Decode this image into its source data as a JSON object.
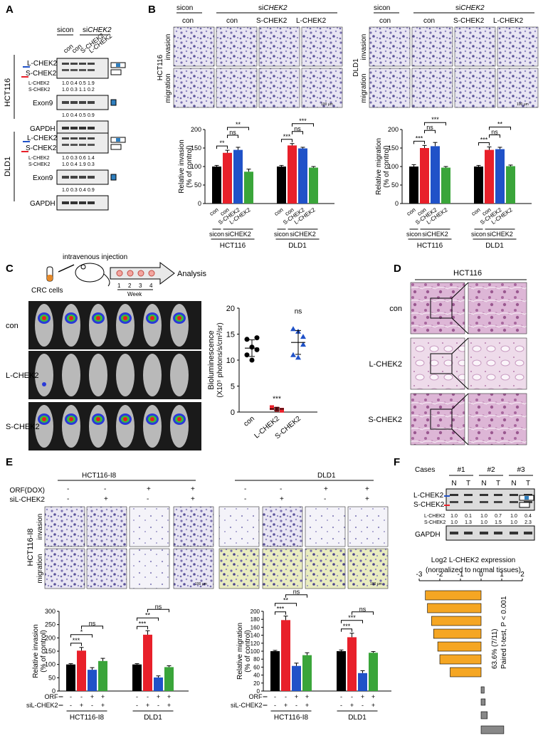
{
  "panels": {
    "A": {
      "letter": "A",
      "header": {
        "sicon": "sicon",
        "si": "si",
        "gene": "CHEK2"
      },
      "lanes": [
        "con",
        "con",
        "S-CHEK2",
        "L-CHEK2"
      ],
      "lines": [
        "HCT116",
        "DLD1"
      ],
      "bands": {
        "long": "L-CHEK2",
        "short": "S-CHEK2",
        "exon9": "Exon9",
        "gapdh": "GAPDH"
      },
      "hct116": {
        "l_ratio": [
          "1.0",
          "0.4",
          "0.5",
          "1.9"
        ],
        "s_ratio": [
          "1.0",
          "0.3",
          "1.1",
          "0.2"
        ],
        "exon9_ratio": [
          "1.0",
          "0.4",
          "0.5",
          "0.9"
        ]
      },
      "dld1": {
        "l_ratio": [
          "1.0",
          "0.3",
          "0.6",
          "1.4"
        ],
        "s_ratio": [
          "1.0",
          "0.4",
          "1.9",
          "0.3"
        ],
        "exon9_ratio": [
          "1.0",
          "0.3",
          "0.4",
          "0.9"
        ]
      }
    },
    "B": {
      "letter": "B",
      "sicon": "sicon",
      "si": "si",
      "gene": "CHEK2",
      "columns": [
        "con",
        "con",
        "S-CHEK2",
        "L-CHEK2"
      ],
      "row_invasion": "invasion",
      "row_migration": "migration",
      "line1": "HCT116",
      "line2": "DLD1",
      "scale": "100 μm",
      "groups": [
        "con",
        "con",
        "S-CHEK2",
        "L-CHEK2"
      ],
      "sicon_label": "sicon",
      "sichek_label": "siCHEK2"
    },
    "C": {
      "letter": "C",
      "cells": "CRC cells",
      "injection": "intravenous injection",
      "weeks": [
        "1",
        "2",
        "3",
        "4"
      ],
      "week": "Week",
      "analysis": "Analysis",
      "rows": [
        "con",
        "L-CHEK2",
        "S-CHEK2"
      ],
      "ylabel": "Bioluminescence",
      "ylabel2": "(X10⁵ photons/s/cm²/sr)"
    },
    "D": {
      "letter": "D",
      "title": "HCT116",
      "rows": [
        "con",
        "L-CHEK2",
        "S-CHEK2"
      ]
    },
    "E": {
      "letter": "E",
      "title1": "HCT116-I8",
      "title2": "DLD1",
      "orf_label": "ORF(DOX)",
      "si_label": "siL-CHEK2",
      "orf_signs": [
        "-",
        "-",
        "+",
        "+"
      ],
      "si_signs": [
        "-",
        "+",
        "-",
        "+"
      ],
      "row_label": "HCT116-I8",
      "row_invasion": "invasion",
      "row_migration": "migration",
      "scale": "100 μm",
      "orf_short": "ORF",
      "si_short": "siL-CHEK2"
    },
    "F": {
      "letter": "F",
      "cases_label": "Cases",
      "cases": [
        "#1",
        "#2",
        "#3"
      ],
      "nt": [
        "N",
        "T",
        "N",
        "T",
        "N",
        "T"
      ],
      "l_label": "L-CHEK2",
      "s_label": "S-CHEK2",
      "gapdh": "GAPDH",
      "l_ratio": [
        "1.0",
        "0.1",
        "1.0",
        "0.7",
        "1.0",
        "0.4"
      ],
      "s_ratio": [
        "1.0",
        "1.3",
        "1.0",
        "1.5",
        "1.0",
        "2.3"
      ],
      "title1": "Log2 L-CHEK2 expression",
      "title2": "(normalized to normal tissues)",
      "stat1": "63.6% (7/11)",
      "stat2": "Paired t-test, P < 0.001"
    }
  },
  "chart_data": [
    {
      "type": "bar",
      "id": "B-invasion",
      "ylabel": "Relative invasion (% of control)",
      "ylim": [
        0,
        200
      ],
      "yticks": [
        0,
        50,
        100,
        150,
        200
      ],
      "groups": [
        "HCT116",
        "DLD1"
      ],
      "categories": [
        "con",
        "con",
        "S-CHEK2",
        "L-CHEK2"
      ],
      "values": [
        [
          100,
          137,
          145,
          86
        ],
        [
          100,
          157,
          149,
          97
        ]
      ],
      "errors": [
        [
          3,
          7,
          7,
          7
        ],
        [
          3,
          5,
          3,
          3
        ]
      ],
      "colors": [
        "#000000",
        "#e8202a",
        "#2052c8",
        "#3aa53a"
      ],
      "significance": [
        {
          "group": 0,
          "from": 0,
          "to": 1,
          "label": "**"
        },
        {
          "group": 0,
          "from": 1,
          "to": 2,
          "label": "ns"
        },
        {
          "group": 0,
          "from": 1,
          "to": 3,
          "label": "**"
        },
        {
          "group": 1,
          "from": 0,
          "to": 1,
          "label": "***"
        },
        {
          "group": 1,
          "from": 1,
          "to": 2,
          "label": "ns"
        },
        {
          "group": 1,
          "from": 1,
          "to": 3,
          "label": "***"
        }
      ]
    },
    {
      "type": "bar",
      "id": "B-migration",
      "ylabel": "Relative migration (% of control)",
      "ylim": [
        0,
        200
      ],
      "yticks": [
        0,
        50,
        100,
        150,
        200
      ],
      "groups": [
        "HCT116",
        "DLD1"
      ],
      "categories": [
        "con",
        "con",
        "S-CHEK2",
        "L-CHEK2"
      ],
      "values": [
        [
          100,
          150,
          155,
          97
        ],
        [
          100,
          145,
          147,
          101
        ]
      ],
      "errors": [
        [
          5,
          7,
          10,
          3
        ],
        [
          3,
          8,
          5,
          3
        ]
      ],
      "colors": [
        "#000000",
        "#e8202a",
        "#2052c8",
        "#3aa53a"
      ],
      "significance": [
        {
          "group": 0,
          "from": 0,
          "to": 1,
          "label": "***"
        },
        {
          "group": 0,
          "from": 1,
          "to": 2,
          "label": "ns"
        },
        {
          "group": 0,
          "from": 1,
          "to": 3,
          "label": "***"
        },
        {
          "group": 1,
          "from": 0,
          "to": 1,
          "label": "***"
        },
        {
          "group": 1,
          "from": 1,
          "to": 2,
          "label": "ns"
        },
        {
          "group": 1,
          "from": 1,
          "to": 3,
          "label": "**"
        }
      ]
    },
    {
      "type": "scatter",
      "id": "C-bioluminescence",
      "ylim": [
        0,
        20
      ],
      "yticks": [
        0,
        5,
        10,
        15,
        20
      ],
      "categories": [
        "con",
        "L-CHEK2",
        "S-CHEK2"
      ],
      "points": [
        [
          14,
          12.5,
          12,
          11,
          10,
          14.3
        ],
        [
          0.8,
          0.5,
          0.3,
          0.9,
          0.6,
          0.4
        ],
        [
          16,
          15.5,
          13,
          11,
          10.5,
          14.5
        ]
      ],
      "means": [
        12.3,
        0.6,
        13.4
      ],
      "sd": [
        1.6,
        0.3,
        2.3
      ],
      "colors": [
        "#000000",
        "#e8202a",
        "#2052c8"
      ],
      "markers": [
        "circle",
        "square",
        "triangle"
      ],
      "annotations": [
        "",
        "***",
        "ns"
      ]
    },
    {
      "type": "bar",
      "id": "E-invasion",
      "ylabel": "Relative invasion (% of control)",
      "ylim": [
        0,
        300
      ],
      "yticks": [
        0,
        50,
        100,
        150,
        200,
        250,
        300
      ],
      "groups": [
        "HCT116-I8",
        "DLD1"
      ],
      "orf": [
        "-",
        "-",
        "+",
        "+"
      ],
      "si": [
        "-",
        "+",
        "-",
        "+"
      ],
      "values": [
        [
          100,
          152,
          80,
          113
        ],
        [
          100,
          212,
          51,
          90
        ]
      ],
      "errors": [
        [
          3,
          12,
          8,
          10
        ],
        [
          3,
          15,
          6,
          5
        ]
      ],
      "colors": [
        "#000000",
        "#e8202a",
        "#2052c8",
        "#3aa53a"
      ],
      "significance": [
        {
          "group": 0,
          "from": 0,
          "to": 1,
          "label": "***"
        },
        {
          "group": 0,
          "from": 0,
          "to": 2,
          "label": "*"
        },
        {
          "group": 0,
          "from": 1,
          "to": 3,
          "label": "ns"
        },
        {
          "group": 1,
          "from": 0,
          "to": 1,
          "label": "***"
        },
        {
          "group": 1,
          "from": 0,
          "to": 2,
          "label": "**"
        },
        {
          "group": 1,
          "from": 1,
          "to": 3,
          "label": "ns"
        }
      ]
    },
    {
      "type": "bar",
      "id": "E-migration",
      "ylabel": "Relative migration (% of control)",
      "ylim": [
        0,
        200
      ],
      "yticks": [
        0,
        20,
        40,
        60,
        80,
        100,
        120,
        140,
        160,
        180,
        200
      ],
      "groups": [
        "HCT116-I8",
        "DLD1"
      ],
      "orf": [
        "-",
        "-",
        "+",
        "+"
      ],
      "si": [
        "-",
        "+",
        "-",
        "+"
      ],
      "values": [
        [
          100,
          178,
          63,
          90
        ],
        [
          100,
          135,
          45,
          96
        ]
      ],
      "errors": [
        [
          2,
          10,
          7,
          6
        ],
        [
          3,
          10,
          6,
          3
        ]
      ],
      "colors": [
        "#000000",
        "#e8202a",
        "#2052c8",
        "#3aa53a"
      ],
      "significance": [
        {
          "group": 0,
          "from": 0,
          "to": 1,
          "label": "***"
        },
        {
          "group": 0,
          "from": 0,
          "to": 2,
          "label": "**"
        },
        {
          "group": 0,
          "from": 1,
          "to": 3,
          "label": "ns"
        },
        {
          "group": 1,
          "from": 0,
          "to": 1,
          "label": "***"
        },
        {
          "group": 1,
          "from": 0,
          "to": 2,
          "label": "***"
        },
        {
          "group": 1,
          "from": 1,
          "to": 3,
          "label": "ns"
        }
      ]
    },
    {
      "type": "bar",
      "id": "F-log2",
      "orientation": "horizontal",
      "xlim": [
        -3,
        2
      ],
      "xticks": [
        -3,
        -2,
        -1,
        0,
        1,
        2
      ],
      "values": [
        -2.7,
        -2.6,
        -2.4,
        -2.3,
        -2.1,
        -2.0,
        -1.5,
        0.15,
        0.2,
        0.3,
        1.1
      ],
      "colors": [
        "#f5a623",
        "#f5a623",
        "#f5a623",
        "#f5a623",
        "#f5a623",
        "#f5a623",
        "#f5a623",
        "#888888",
        "#888888",
        "#888888",
        "#888888"
      ]
    }
  ]
}
